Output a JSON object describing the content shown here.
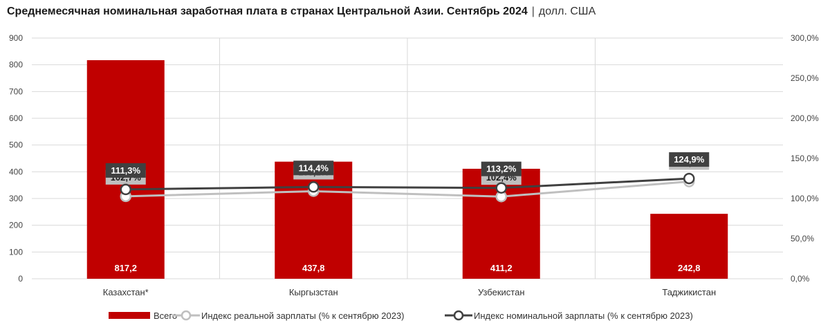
{
  "title": {
    "main": "Среднемесячная номинальная заработная плата в странах Центральной Азии. Сентябрь 2024",
    "separator": "|",
    "unit": "долл. США"
  },
  "colors": {
    "bar": "#c00000",
    "real_line": "#bfbfbf",
    "nominal_line": "#404040",
    "grid": "#d9d9d9",
    "real_label_bg": "#bfbfbf",
    "nominal_label_bg": "#404040"
  },
  "chart_data": {
    "type": "bar",
    "categories": [
      "Казахстан*",
      "Кыргызстан",
      "Узбекистан",
      "Таджикистан"
    ],
    "series": [
      {
        "name": "Всего",
        "type": "bar",
        "axis": "left",
        "values": [
          817.2,
          437.8,
          411.2,
          242.8
        ],
        "labels": [
          "817,2",
          "437,8",
          "411,2",
          "242,8"
        ]
      },
      {
        "name": "Индекс реальной зарплаты (% к сентябрю 2023)",
        "type": "line",
        "axis": "right",
        "values": [
          102.7,
          109.1,
          102.4,
          121.1
        ],
        "labels": [
          "102,7%",
          "109,1%",
          "102,4%",
          "121,1%"
        ]
      },
      {
        "name": "Индекс номинальной зарплаты (% к сентябрю 2023)",
        "type": "line",
        "axis": "right",
        "values": [
          111.3,
          114.4,
          113.2,
          124.9
        ],
        "labels": [
          "111,3%",
          "114,4%",
          "113,2%",
          "124,9%"
        ]
      }
    ],
    "left_axis": {
      "min": 0,
      "max": 900,
      "ticks": [
        0,
        100,
        200,
        300,
        400,
        500,
        600,
        700,
        800,
        900
      ],
      "tick_labels": [
        "0",
        "100",
        "200",
        "300",
        "400",
        "500",
        "600",
        "700",
        "800",
        "900"
      ]
    },
    "right_axis": {
      "min": 0,
      "max": 300,
      "ticks": [
        0,
        50,
        100,
        150,
        200,
        250,
        300
      ],
      "tick_labels": [
        "0,0%",
        "50,0%",
        "100,0%",
        "150,0%",
        "200,0%",
        "250,0%",
        "300,0%"
      ]
    },
    "grid": true,
    "legend_position": "bottom"
  }
}
